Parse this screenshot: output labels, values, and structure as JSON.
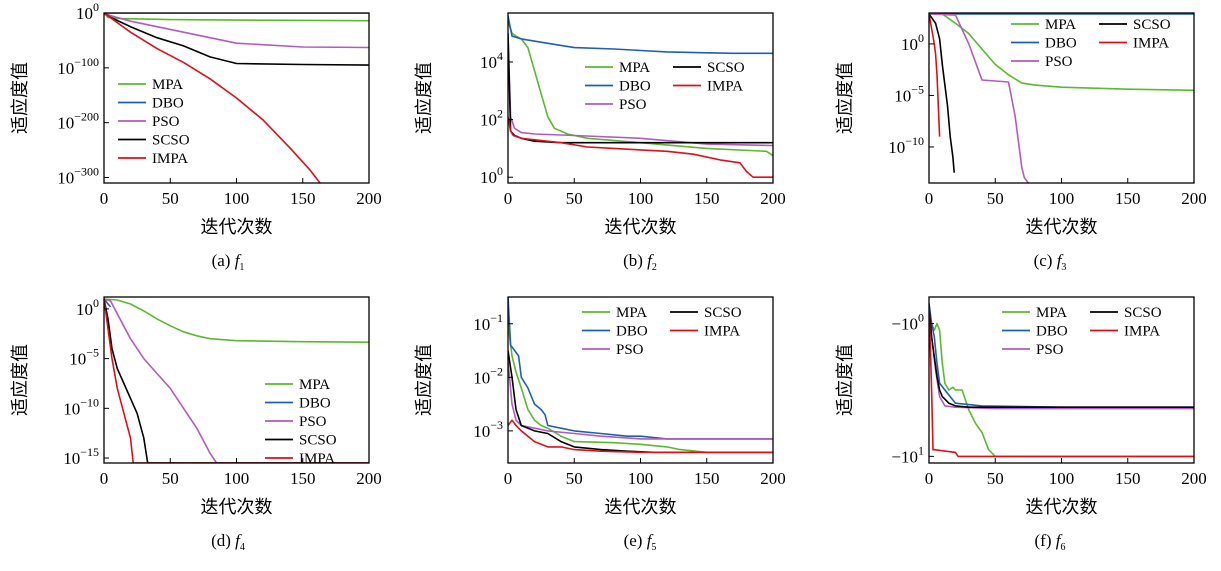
{
  "figure": {
    "colors": {
      "MPA": "#5cb831",
      "DBO": "#1f5fb0",
      "PSO": "#b05cbe",
      "SCSO": "#000000",
      "IMPA": "#d9111b"
    }
  },
  "chart_data": [
    {
      "type": "line",
      "caption_prefix": "(a)",
      "caption_var": "f",
      "caption_sub": "1",
      "xlabel": "迭代次数",
      "ylabel": "适应度值",
      "yscale": "log",
      "xlim": [
        0,
        200
      ],
      "ylim_log10": [
        -310,
        0
      ],
      "xticks": [
        0,
        50,
        100,
        150,
        200
      ],
      "yticks": [
        {
          "v": 0,
          "base": "10",
          "exp": "0"
        },
        {
          "v": -100,
          "base": "10",
          "exp": "−100"
        },
        {
          "v": -200,
          "base": "10",
          "exp": "−200"
        },
        {
          "v": -300,
          "base": "10",
          "exp": "−300"
        }
      ],
      "legend": {
        "placement": "lower-left",
        "columns": 1,
        "order": [
          "MPA",
          "DBO",
          "PSO",
          "SCSO",
          "IMPA"
        ]
      },
      "series": [
        {
          "name": "MPA",
          "x": [
            0,
            3,
            10,
            50,
            100,
            200
          ],
          "y": [
            0,
            -8,
            -10,
            -12,
            -13,
            -14
          ]
        },
        {
          "name": "DBO",
          "x": [
            0,
            200
          ],
          "y": [
            0,
            0
          ]
        },
        {
          "name": "PSO",
          "x": [
            0,
            5,
            20,
            40,
            60,
            80,
            100,
            150,
            200
          ],
          "y": [
            0,
            -5,
            -15,
            -25,
            -35,
            -45,
            -55,
            -62,
            -63
          ]
        },
        {
          "name": "SCSO",
          "x": [
            0,
            5,
            20,
            40,
            60,
            80,
            100,
            150,
            200
          ],
          "y": [
            0,
            -8,
            -25,
            -45,
            -60,
            -80,
            -92,
            -94,
            -95
          ]
        },
        {
          "name": "IMPA",
          "x": [
            0,
            20,
            40,
            60,
            80,
            100,
            120,
            140,
            155,
            163
          ],
          "y": [
            0,
            -35,
            -65,
            -90,
            -120,
            -155,
            -195,
            -245,
            -285,
            -310
          ]
        }
      ]
    },
    {
      "type": "line",
      "caption_prefix": "(b)",
      "caption_var": "f",
      "caption_sub": "2",
      "xlabel": "迭代次数",
      "ylabel": "适应度值",
      "yscale": "log",
      "xlim": [
        0,
        200
      ],
      "ylim_log10": [
        -0.2,
        5.7
      ],
      "xticks": [
        0,
        50,
        100,
        150,
        200
      ],
      "yticks": [
        {
          "v": 0,
          "base": "10",
          "exp": "0"
        },
        {
          "v": 2,
          "base": "10",
          "exp": "2"
        },
        {
          "v": 4,
          "base": "10",
          "exp": "4"
        }
      ],
      "legend": {
        "placement": "upper-right",
        "columns": 2,
        "order": [
          "MPA",
          "SCSO",
          "DBO",
          "IMPA",
          "PSO"
        ]
      },
      "series": [
        {
          "name": "MPA",
          "x": [
            0,
            3,
            6,
            10,
            15,
            20,
            25,
            30,
            35,
            45,
            60,
            100,
            150,
            195,
            200
          ],
          "y": [
            5.4,
            5.0,
            4.9,
            4.8,
            4.5,
            3.7,
            2.9,
            2.1,
            1.7,
            1.5,
            1.35,
            1.2,
            1.0,
            0.9,
            0.75
          ]
        },
        {
          "name": "DBO",
          "x": [
            0,
            3,
            10,
            30,
            50,
            80,
            100,
            120,
            150,
            170,
            200
          ],
          "y": [
            5.6,
            4.9,
            4.8,
            4.65,
            4.5,
            4.45,
            4.4,
            4.35,
            4.32,
            4.3,
            4.3
          ]
        },
        {
          "name": "PSO",
          "x": [
            0,
            2,
            5,
            10,
            20,
            50,
            100,
            150,
            200
          ],
          "y": [
            4.9,
            2.1,
            1.7,
            1.55,
            1.5,
            1.45,
            1.35,
            1.15,
            1.1
          ]
        },
        {
          "name": "SCSO",
          "x": [
            0,
            2,
            5,
            10,
            20,
            40,
            60,
            100,
            150,
            200
          ],
          "y": [
            5.0,
            1.6,
            1.45,
            1.35,
            1.25,
            1.2,
            1.2,
            1.2,
            1.2,
            1.2
          ]
        },
        {
          "name": "IMPA",
          "x": [
            0,
            2,
            4,
            10,
            20,
            40,
            60,
            80,
            100,
            120,
            140,
            160,
            175,
            180,
            185,
            200
          ],
          "y": [
            2.1,
            1.6,
            1.45,
            1.35,
            1.3,
            1.2,
            1.05,
            1.0,
            0.95,
            0.9,
            0.8,
            0.6,
            0.5,
            0.2,
            0.0,
            0.0
          ]
        }
      ]
    },
    {
      "type": "line",
      "caption_prefix": "(c)",
      "caption_var": "f",
      "caption_sub": "3",
      "xlabel": "迭代次数",
      "ylabel": "适应度值",
      "yscale": "log",
      "xlim": [
        0,
        200
      ],
      "ylim_log10": [
        -13.5,
        3.0
      ],
      "xticks": [
        0,
        50,
        100,
        150,
        200
      ],
      "yticks": [
        {
          "v": 0,
          "base": "10",
          "exp": "0"
        },
        {
          "v": -5,
          "base": "10",
          "exp": "−5"
        },
        {
          "v": -10,
          "base": "10",
          "exp": "−10"
        }
      ],
      "legend": {
        "placement": "upper-right",
        "columns": 2,
        "order": [
          "MPA",
          "SCSO",
          "DBO",
          "IMPA",
          "PSO"
        ]
      },
      "series": [
        {
          "name": "MPA",
          "x": [
            0,
            10,
            20,
            30,
            40,
            50,
            60,
            70,
            80,
            100,
            150,
            200
          ],
          "y": [
            2.9,
            2.9,
            2.0,
            1.0,
            -0.5,
            -2.0,
            -3.0,
            -3.8,
            -4.0,
            -4.2,
            -4.4,
            -4.5
          ]
        },
        {
          "name": "DBO",
          "x": [
            0,
            200
          ],
          "y": [
            2.9,
            2.9
          ]
        },
        {
          "name": "PSO",
          "x": [
            0,
            20,
            30,
            40,
            50,
            60,
            65,
            70,
            72,
            75
          ],
          "y": [
            2.9,
            2.8,
            0.0,
            -3.5,
            -3.6,
            -3.7,
            -7.0,
            -12.0,
            -13.0,
            -13.5
          ]
        },
        {
          "name": "SCSO",
          "x": [
            0,
            5,
            8,
            10,
            12,
            14,
            16,
            18,
            19
          ],
          "y": [
            2.9,
            2.0,
            0.5,
            -2.0,
            -4.0,
            -6.0,
            -9.0,
            -11.0,
            -12.5
          ]
        },
        {
          "name": "IMPA",
          "x": [
            0,
            2,
            4,
            5,
            6,
            7,
            8
          ],
          "y": [
            2.9,
            1.5,
            0.0,
            -1.0,
            -3.0,
            -6.0,
            -9.0
          ]
        }
      ]
    },
    {
      "type": "line",
      "caption_prefix": "(d)",
      "caption_var": "f",
      "caption_sub": "4",
      "xlabel": "迭代次数",
      "ylabel": "适应度值",
      "yscale": "log",
      "xlim": [
        0,
        200
      ],
      "ylim_log10": [
        -15.5,
        1.2
      ],
      "xticks": [
        0,
        50,
        100,
        150,
        200
      ],
      "yticks": [
        {
          "v": 0,
          "base": "10",
          "exp": "0"
        },
        {
          "v": -5,
          "base": "10",
          "exp": "−5"
        },
        {
          "v": -10,
          "base": "10",
          "exp": "−10"
        },
        {
          "v": -15,
          "base": "10",
          "exp": "−15"
        }
      ],
      "legend": {
        "placement": "lower-right",
        "columns": 1,
        "order": [
          "MPA",
          "DBO",
          "PSO",
          "SCSO",
          "IMPA"
        ]
      },
      "series": [
        {
          "name": "MPA",
          "x": [
            0,
            10,
            20,
            30,
            40,
            50,
            60,
            70,
            80,
            100,
            150,
            200
          ],
          "y": [
            1.0,
            0.9,
            0.5,
            -0.2,
            -1.0,
            -1.7,
            -2.3,
            -2.7,
            -3.0,
            -3.2,
            -3.3,
            -3.35
          ]
        },
        {
          "name": "DBO",
          "x": [
            0,
            3,
            5
          ],
          "y": [
            1.0,
            0.5,
            0.2
          ]
        },
        {
          "name": "PSO",
          "x": [
            0,
            5,
            10,
            20,
            30,
            40,
            50,
            60,
            70,
            80,
            85,
            200
          ],
          "y": [
            1.0,
            0.8,
            -0.5,
            -3.0,
            -5.0,
            -6.5,
            -8.0,
            -10.0,
            -12.0,
            -14.5,
            -15.5,
            -15.5
          ]
        },
        {
          "name": "SCSO",
          "x": [
            0,
            3,
            6,
            10,
            15,
            20,
            25,
            30,
            33,
            200
          ],
          "y": [
            1.0,
            -1.0,
            -4.0,
            -6.0,
            -7.5,
            -9.0,
            -10.5,
            -13.0,
            -15.5,
            -15.5
          ]
        },
        {
          "name": "IMPA",
          "x": [
            0,
            3,
            6,
            10,
            15,
            20,
            22,
            200
          ],
          "y": [
            1.0,
            -2.0,
            -5.0,
            -8.0,
            -10.5,
            -13.0,
            -15.5,
            -15.5
          ]
        }
      ]
    },
    {
      "type": "line",
      "caption_prefix": "(e)",
      "caption_var": "f",
      "caption_sub": "5",
      "xlabel": "迭代次数",
      "ylabel": "适应度值",
      "yscale": "log",
      "xlim": [
        0,
        200
      ],
      "ylim_log10": [
        -3.6,
        -0.5
      ],
      "xticks": [
        0,
        50,
        100,
        150,
        200
      ],
      "yticks": [
        {
          "v": -1,
          "base": "10",
          "exp": "−1"
        },
        {
          "v": -2,
          "base": "10",
          "exp": "−2"
        },
        {
          "v": -3,
          "base": "10",
          "exp": "−3"
        }
      ],
      "legend": {
        "placement": "upper-right",
        "columns": 2,
        "order": [
          "MPA",
          "SCSO",
          "DBO",
          "IMPA",
          "PSO"
        ]
      },
      "series": [
        {
          "name": "MPA",
          "x": [
            0,
            3,
            6,
            10,
            15,
            20,
            25,
            30,
            40,
            50,
            80,
            100,
            120,
            130,
            150,
            200
          ],
          "y": [
            -1.0,
            -1.6,
            -1.9,
            -2.2,
            -2.6,
            -2.8,
            -2.9,
            -2.95,
            -3.1,
            -3.2,
            -3.22,
            -3.25,
            -3.3,
            -3.35,
            -3.4,
            -3.4
          ]
        },
        {
          "name": "DBO",
          "x": [
            0,
            2,
            5,
            8,
            10,
            15,
            20,
            25,
            28,
            30,
            40,
            50,
            70,
            90,
            100,
            120,
            150,
            200
          ],
          "y": [
            -0.5,
            -1.4,
            -1.5,
            -1.6,
            -2.0,
            -2.2,
            -2.5,
            -2.6,
            -2.7,
            -2.9,
            -2.95,
            -3.0,
            -3.05,
            -3.1,
            -3.1,
            -3.15,
            -3.15,
            -3.15
          ]
        },
        {
          "name": "PSO",
          "x": [
            0,
            3,
            6,
            10,
            20,
            30,
            50,
            70,
            100,
            150,
            200
          ],
          "y": [
            -1.7,
            -2.5,
            -2.8,
            -2.9,
            -2.95,
            -3.0,
            -3.05,
            -3.1,
            -3.15,
            -3.15,
            -3.15
          ]
        },
        {
          "name": "SCSO",
          "x": [
            0,
            3,
            6,
            10,
            20,
            30,
            40,
            50,
            70,
            90,
            110,
            200
          ],
          "y": [
            -1.5,
            -2.0,
            -2.6,
            -2.9,
            -3.0,
            -3.05,
            -3.2,
            -3.3,
            -3.35,
            -3.38,
            -3.4,
            -3.4
          ]
        },
        {
          "name": "IMPA",
          "x": [
            0,
            3,
            6,
            10,
            20,
            30,
            40,
            50,
            70,
            100,
            200
          ],
          "y": [
            -2.9,
            -2.8,
            -2.9,
            -3.0,
            -3.2,
            -3.3,
            -3.3,
            -3.35,
            -3.38,
            -3.4,
            -3.4
          ]
        }
      ]
    },
    {
      "type": "line",
      "caption_prefix": "(f)",
      "caption_var": "f",
      "caption_sub": "6",
      "xlabel": "迭代次数",
      "ylabel": "适应度值",
      "yscale": "neg-log",
      "xlim": [
        0,
        200
      ],
      "ylim_log10": [
        -0.2,
        1.05
      ],
      "xticks": [
        0,
        50,
        100,
        150,
        200
      ],
      "yticks": [
        {
          "v": 0,
          "base": "−10",
          "exp": "0"
        },
        {
          "v": 1,
          "base": "−10",
          "exp": "1"
        }
      ],
      "legend": {
        "placement": "upper-right",
        "columns": 2,
        "order": [
          "MPA",
          "SCSO",
          "DBO",
          "IMPA",
          "PSO"
        ]
      },
      "series": [
        {
          "name": "MPA",
          "x": [
            0,
            2,
            4,
            6,
            8,
            10,
            12,
            15,
            18,
            20,
            25,
            30,
            35,
            40,
            45,
            50,
            60,
            100,
            200
          ],
          "y": [
            -0.1,
            0.0,
            0.05,
            0.0,
            0.05,
            0.3,
            0.45,
            0.5,
            0.48,
            0.5,
            0.5,
            0.65,
            0.75,
            0.82,
            0.95,
            1.0,
            1.0,
            1.0,
            1.0
          ]
        },
        {
          "name": "DBO",
          "x": [
            0,
            2,
            4,
            6,
            8,
            12,
            20,
            40,
            100,
            200
          ],
          "y": [
            -0.15,
            0.0,
            0.1,
            0.3,
            0.45,
            0.5,
            0.6,
            0.62,
            0.63,
            0.63
          ]
        },
        {
          "name": "PSO",
          "x": [
            0,
            2,
            5,
            8,
            12,
            20,
            50,
            100,
            200
          ],
          "y": [
            -0.1,
            0.1,
            0.35,
            0.55,
            0.62,
            0.63,
            0.64,
            0.64,
            0.64
          ]
        },
        {
          "name": "SCSO",
          "x": [
            0,
            2,
            4,
            6,
            8,
            10,
            15,
            20,
            30,
            100,
            200
          ],
          "y": [
            -0.15,
            0.1,
            0.25,
            0.4,
            0.5,
            0.55,
            0.6,
            0.62,
            0.63,
            0.63,
            0.63
          ]
        },
        {
          "name": "IMPA",
          "x": [
            0,
            2,
            3,
            4,
            20,
            22,
            200
          ],
          "y": [
            -0.15,
            0.5,
            0.95,
            0.95,
            0.97,
            1.0,
            1.0
          ]
        }
      ]
    }
  ]
}
